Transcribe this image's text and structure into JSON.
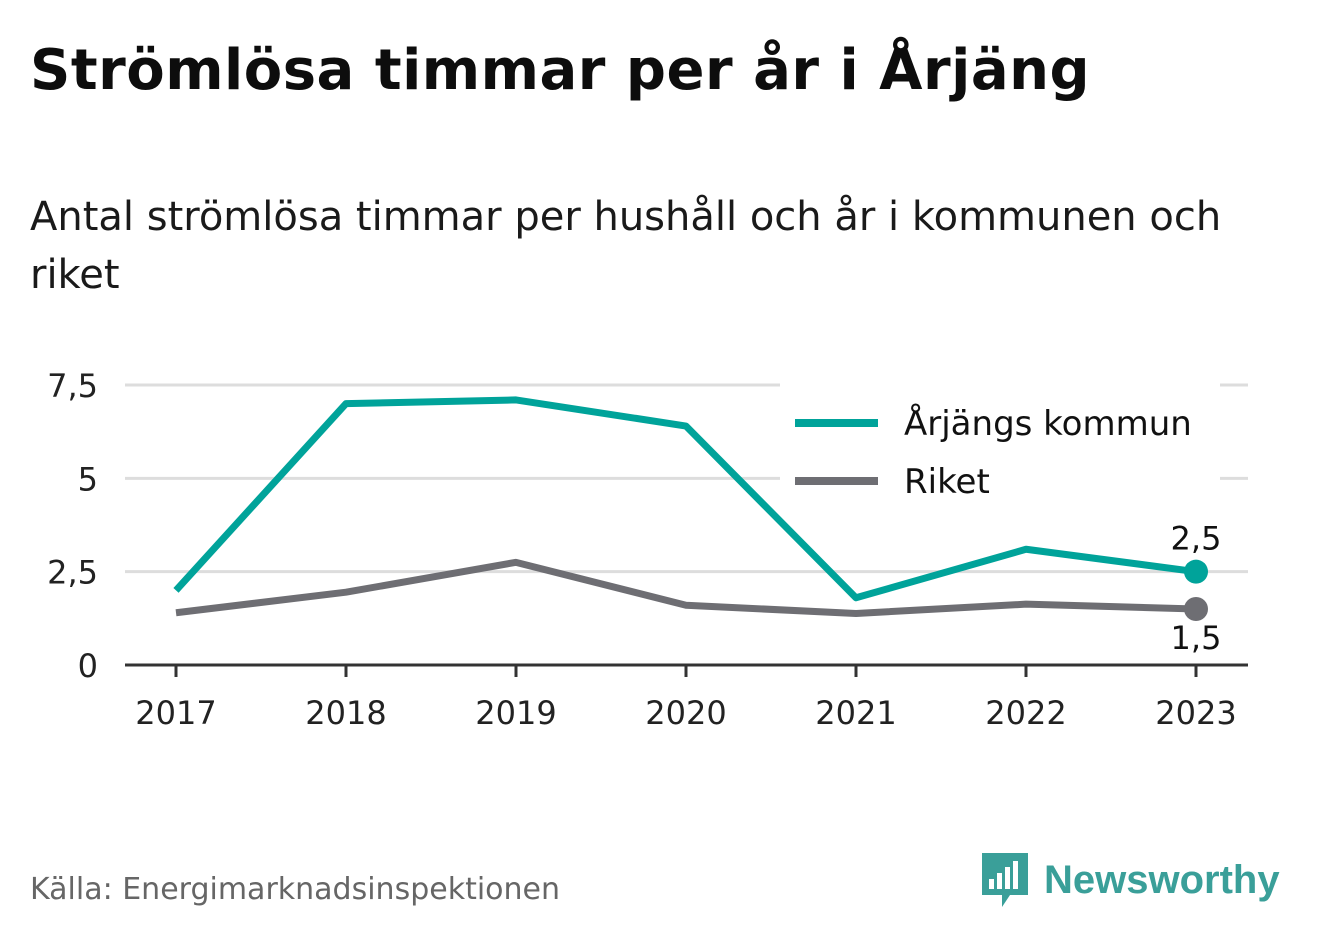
{
  "title": "Strömlösa timmar per år i Årjäng",
  "subtitle": "Antal strömlösa timmar per hushåll och år i kommunen och riket",
  "source": "Källa: Energimarknadsinspektionen",
  "brand": {
    "name": "Newsworthy",
    "icon": "newsworthy-logo-icon",
    "color": "#3a9f99"
  },
  "chart_data": {
    "type": "line",
    "x": [
      "2017",
      "2018",
      "2019",
      "2020",
      "2021",
      "2022",
      "2023"
    ],
    "series": [
      {
        "name": "Årjängs kommun",
        "color": "#00a39a",
        "values": [
          2.0,
          7.0,
          7.1,
          6.4,
          1.8,
          3.1,
          2.5
        ],
        "end_label": "2,5"
      },
      {
        "name": "Riket",
        "color": "#6e6e73",
        "values": [
          1.4,
          1.95,
          2.75,
          1.6,
          1.38,
          1.63,
          1.5
        ],
        "end_label": "1,5"
      }
    ],
    "ylim": [
      0,
      7.5
    ],
    "yticks": [
      {
        "value": 0,
        "label": "0"
      },
      {
        "value": 2.5,
        "label": "2,5"
      },
      {
        "value": 5,
        "label": "5"
      },
      {
        "value": 7.5,
        "label": "7,5"
      }
    ],
    "grid": true,
    "legend_position": "top-right",
    "xlabel": "",
    "ylabel": ""
  }
}
